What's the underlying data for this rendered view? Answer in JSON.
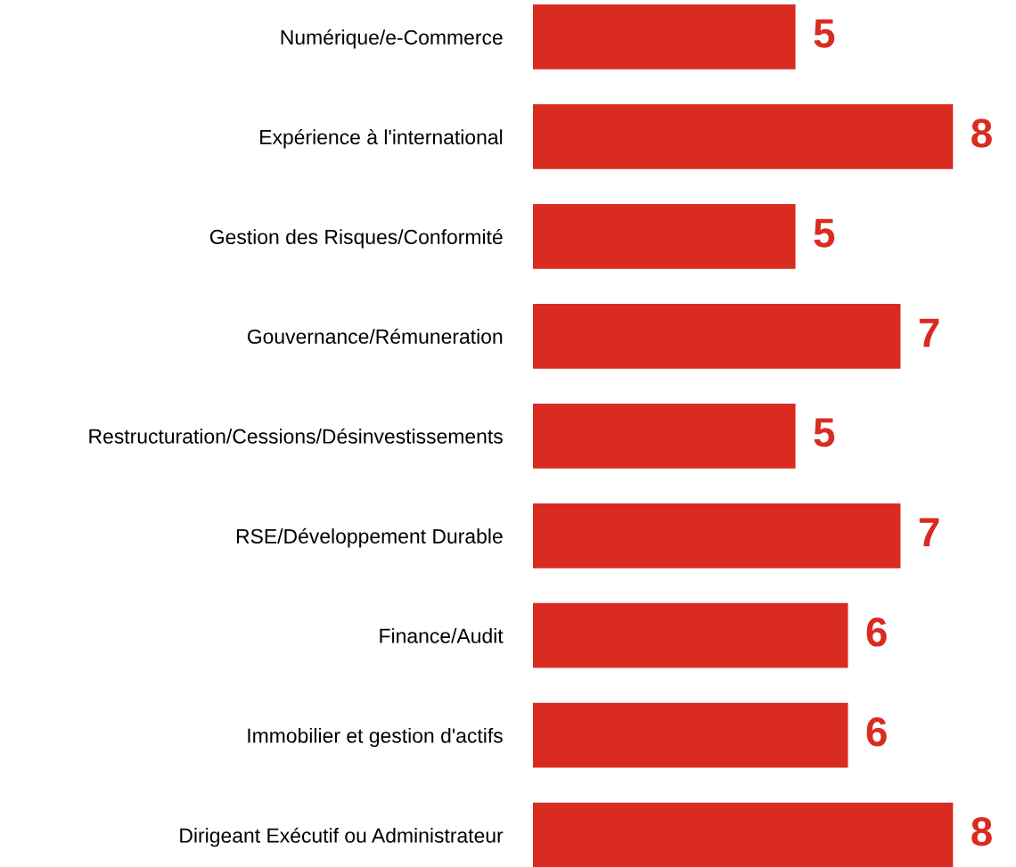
{
  "chart_data": {
    "type": "bar",
    "orientation": "horizontal",
    "categories": [
      "Numérique/e-Commerce",
      "Expérience à l'international",
      "Gestion des Risques/Conformité",
      "Gouvernance/Rémuneration",
      "Restructuration/Cessions/Désinvestissements",
      "RSE/Développement Durable",
      "Finance/Audit",
      "Immobilier et gestion d'actifs",
      "Dirigeant Exécutif ou Administrateur"
    ],
    "values": [
      5,
      8,
      5,
      7,
      5,
      7,
      6,
      6,
      8
    ],
    "color": "#d92b20",
    "data_labels": true,
    "grid": false,
    "legend": false,
    "tick_labels": "y"
  }
}
